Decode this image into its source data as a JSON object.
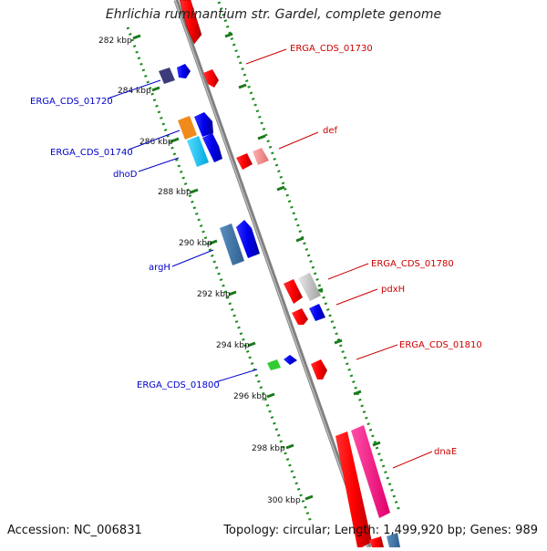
{
  "title": "Ehrlichia ruminantium str. Gardel, complete genome",
  "footer": {
    "accession": "Accession: NC_006831",
    "summary": "Topology: circular; Length: 1,499,920 bp; Genes: 989"
  },
  "ticks": [
    "282 kbp",
    "284 kbp",
    "286 kbp",
    "288 kbp",
    "290 kbp",
    "292 kbp",
    "294 kbp",
    "296 kbp",
    "298 kbp",
    "300 kbp"
  ],
  "features": {
    "left": [
      "ERGA_CDS_01720",
      "ERGA_CDS_01740",
      "dhoD",
      "argH",
      "ERGA_CDS_01800"
    ],
    "right": [
      "ERGA_CDS_01730",
      "def",
      "ERGA_CDS_01780",
      "pdxH",
      "ERGA_CDS_01810",
      "dnaE"
    ]
  },
  "colors": {
    "reverse_strand_label": "#0000cc",
    "forward_strand_label": "#cc0000",
    "backbone": "#808080",
    "tick": "#1a7a1a",
    "dots": "#1a8a1a"
  }
}
